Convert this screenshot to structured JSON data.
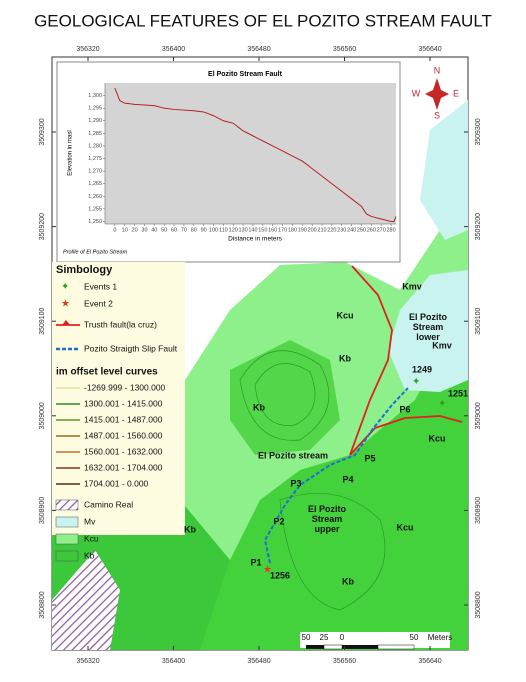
{
  "title": "GEOLOGICAL FEATURES OF EL POZITO STREAM FAULT",
  "map": {
    "x_ticks": [
      356320,
      356400,
      356480,
      356560,
      356640
    ],
    "y_ticks": [
      3509300,
      3509200,
      3509100,
      3509000,
      3508900,
      3508800
    ],
    "north_arrow": {
      "n": "N",
      "s": "S",
      "e": "E",
      "w": "W"
    },
    "labels": [
      "Kmv",
      "Kcu",
      "El Pozito Stream lower",
      "Kmv",
      "Kb",
      "1249",
      "1251",
      "Kb",
      "P6",
      "P5",
      "P4",
      "El Pozito stream",
      "P3",
      "El Pozito Stream upper",
      "P2",
      "Kcu",
      "Kcu",
      "Kb",
      "P1",
      "1256",
      "Kb"
    ],
    "scale_bar": [
      "50",
      "25",
      "0",
      "50",
      "Meters"
    ]
  },
  "legend": {
    "title": "Simbology",
    "items": [
      "Events 1",
      "Event 2",
      "Trusth fault(la cruz)",
      "Pozito Straigth Slip Fault"
    ],
    "curves_title": "im offset level curves",
    "curves": [
      "-1269.999 - 1300.000",
      "1300.001 - 1415.000",
      "1415.001 - 1487.000",
      "1487.001 - 1560.000",
      "1560.001 - 1632.000",
      "1632.001 - 1704.000",
      "1704.001 - 0.000"
    ],
    "units": [
      "Camino Real",
      "Mv",
      "Kcu",
      "Kb"
    ]
  },
  "chart_data": {
    "type": "line",
    "title": "El Pozito Stream Fault",
    "note": "Profile of El Pozito Stream",
    "x_label": "Distance in meters",
    "y_label": "Elevation in masl",
    "series": [
      {
        "name": "Profile",
        "color": "#b22222",
        "x": [
          0,
          5,
          10,
          20,
          40,
          50,
          60,
          80,
          90,
          100,
          110,
          120,
          130,
          140,
          150,
          160,
          170,
          180,
          190,
          200,
          210,
          220,
          230,
          240,
          250,
          255,
          260,
          270,
          280,
          283,
          285
        ],
        "values": [
          1303,
          1298,
          1297,
          1296.5,
          1296,
          1295,
          1294.5,
          1294,
          1293.5,
          1292,
          1290,
          1289,
          1286,
          1284,
          1282,
          1280,
          1278,
          1276,
          1274,
          1271,
          1268,
          1265,
          1262,
          1259,
          1256,
          1253,
          1252,
          1251,
          1250,
          1250,
          1252
        ]
      }
    ],
    "xlim": [
      -10,
      285
    ],
    "ylim": [
      1249,
      1305
    ],
    "xticks": [
      0,
      10,
      20,
      30,
      40,
      50,
      60,
      70,
      80,
      90,
      100,
      110,
      120,
      130,
      140,
      150,
      160,
      170,
      180,
      190,
      200,
      210,
      220,
      230,
      240,
      250,
      260,
      270,
      280
    ],
    "yticks": [
      {
        "value": 1250,
        "label": "1,250"
      },
      {
        "value": 1255,
        "label": "1,255"
      },
      {
        "value": 1260,
        "label": "1,260"
      },
      {
        "value": 1265,
        "label": "1,265"
      },
      {
        "value": 1270,
        "label": "1,270"
      },
      {
        "value": 1275,
        "label": "1,275"
      },
      {
        "value": 1280,
        "label": "1,280"
      },
      {
        "value": 1285,
        "label": "1,285"
      },
      {
        "value": 1290,
        "label": "1,290"
      },
      {
        "value": 1295,
        "label": "1,295"
      },
      {
        "value": 1300,
        "label": "1,300"
      }
    ],
    "grid": false
  }
}
